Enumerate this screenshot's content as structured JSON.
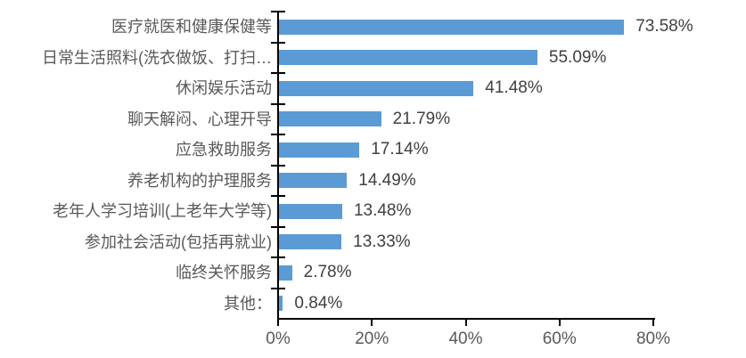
{
  "chart_data": {
    "type": "bar",
    "orientation": "horizontal",
    "title": "",
    "xlabel": "",
    "ylabel": "",
    "categories": [
      "医疗就医和健康保健等",
      "日常生活照料(洗衣做饭、打扫…",
      "休闲娱乐活动",
      "聊天解闷、心理开导",
      "应急救助服务",
      "养老机构的护理服务",
      "老年人学习培训(上老年大学等)",
      "参加社会活动(包括再就业)",
      "临终关怀服务",
      "其他："
    ],
    "values": [
      73.58,
      55.09,
      41.48,
      21.79,
      17.14,
      14.49,
      13.48,
      13.33,
      2.78,
      0.84
    ],
    "value_labels": [
      "73.58%",
      "55.09%",
      "41.48%",
      "21.79%",
      "17.14%",
      "14.49%",
      "13.48%",
      "13.33%",
      "2.78%",
      "0.84%"
    ],
    "x_ticks": [
      "0%",
      "20%",
      "40%",
      "60%",
      "80%"
    ],
    "x_tick_values": [
      0,
      20,
      40,
      60,
      80
    ],
    "xlim": [
      0,
      80
    ],
    "grid": false,
    "legend_position": "none",
    "colors": {
      "bar": "#5B9BD5",
      "axis": "#000000",
      "category_label": "#595959",
      "value_label": "#404040",
      "tick_label": "#595959",
      "background": "#FFFFFF"
    }
  }
}
